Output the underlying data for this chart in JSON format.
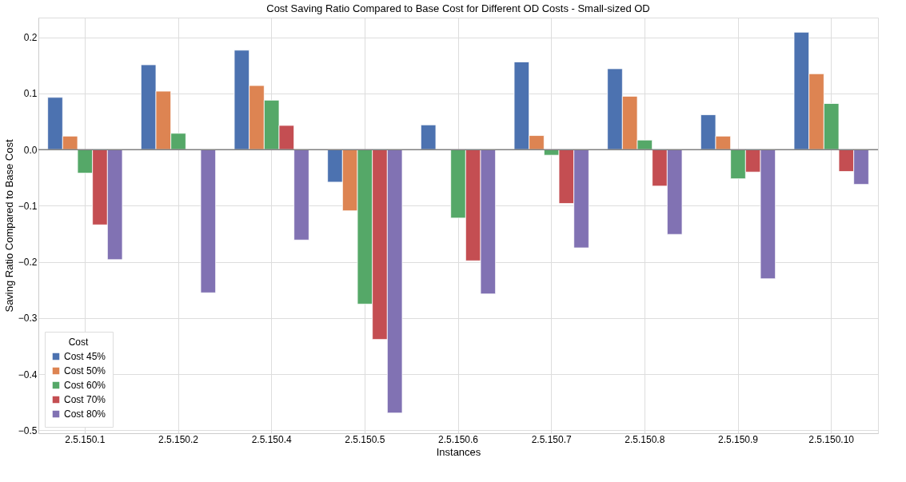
{
  "chart_data": {
    "type": "bar",
    "title": "Cost Saving Ratio Compared to Base Cost for Different OD Costs - Small-sized OD",
    "xlabel": "Instances",
    "ylabel": "Saving Ratio Compared to Base Cost",
    "legend_title": "Cost",
    "categories": [
      "2.5.150.1",
      "2.5.150.2",
      "2.5.150.4",
      "2.5.150.5",
      "2.5.150.6",
      "2.5.150.7",
      "2.5.150.8",
      "2.5.150.9",
      "2.5.150.10"
    ],
    "series": [
      {
        "name": "Cost 45%",
        "color": "#4c72b0",
        "values": [
          0.093,
          0.151,
          0.177,
          -0.058,
          0.044,
          0.156,
          0.144,
          0.062,
          0.209
        ]
      },
      {
        "name": "Cost 50%",
        "color": "#dd8452",
        "values": [
          0.024,
          0.104,
          0.114,
          -0.109,
          null,
          0.025,
          0.095,
          0.024,
          0.135
        ]
      },
      {
        "name": "Cost 60%",
        "color": "#55a868",
        "values": [
          -0.042,
          0.029,
          0.088,
          -0.275,
          -0.122,
          -0.01,
          0.017,
          -0.052,
          0.082
        ]
      },
      {
        "name": "Cost 70%",
        "color": "#c44e52",
        "values": [
          -0.134,
          null,
          0.043,
          -0.338,
          -0.198,
          -0.096,
          -0.065,
          -0.04,
          -0.039
        ]
      },
      {
        "name": "Cost 80%",
        "color": "#8172b3",
        "values": [
          -0.196,
          -0.255,
          -0.161,
          -0.469,
          -0.257,
          -0.175,
          -0.151,
          -0.23,
          -0.062
        ]
      }
    ],
    "ylim": [
      -0.505,
      0.235
    ],
    "yticks": [
      {
        "value": -0.5,
        "label": "−0.5"
      },
      {
        "value": -0.4,
        "label": "−0.4"
      },
      {
        "value": -0.3,
        "label": "−0.3"
      },
      {
        "value": -0.2,
        "label": "−0.2"
      },
      {
        "value": -0.1,
        "label": "−0.1"
      },
      {
        "value": 0,
        "label": "0.0"
      },
      {
        "value": 0.1,
        "label": "0.1"
      },
      {
        "value": 0.2,
        "label": "0.2"
      }
    ],
    "ref_lines": [
      {
        "axis": "y",
        "value": 0,
        "color": "#808080"
      }
    ],
    "grid": true,
    "legend": "bottom left"
  }
}
